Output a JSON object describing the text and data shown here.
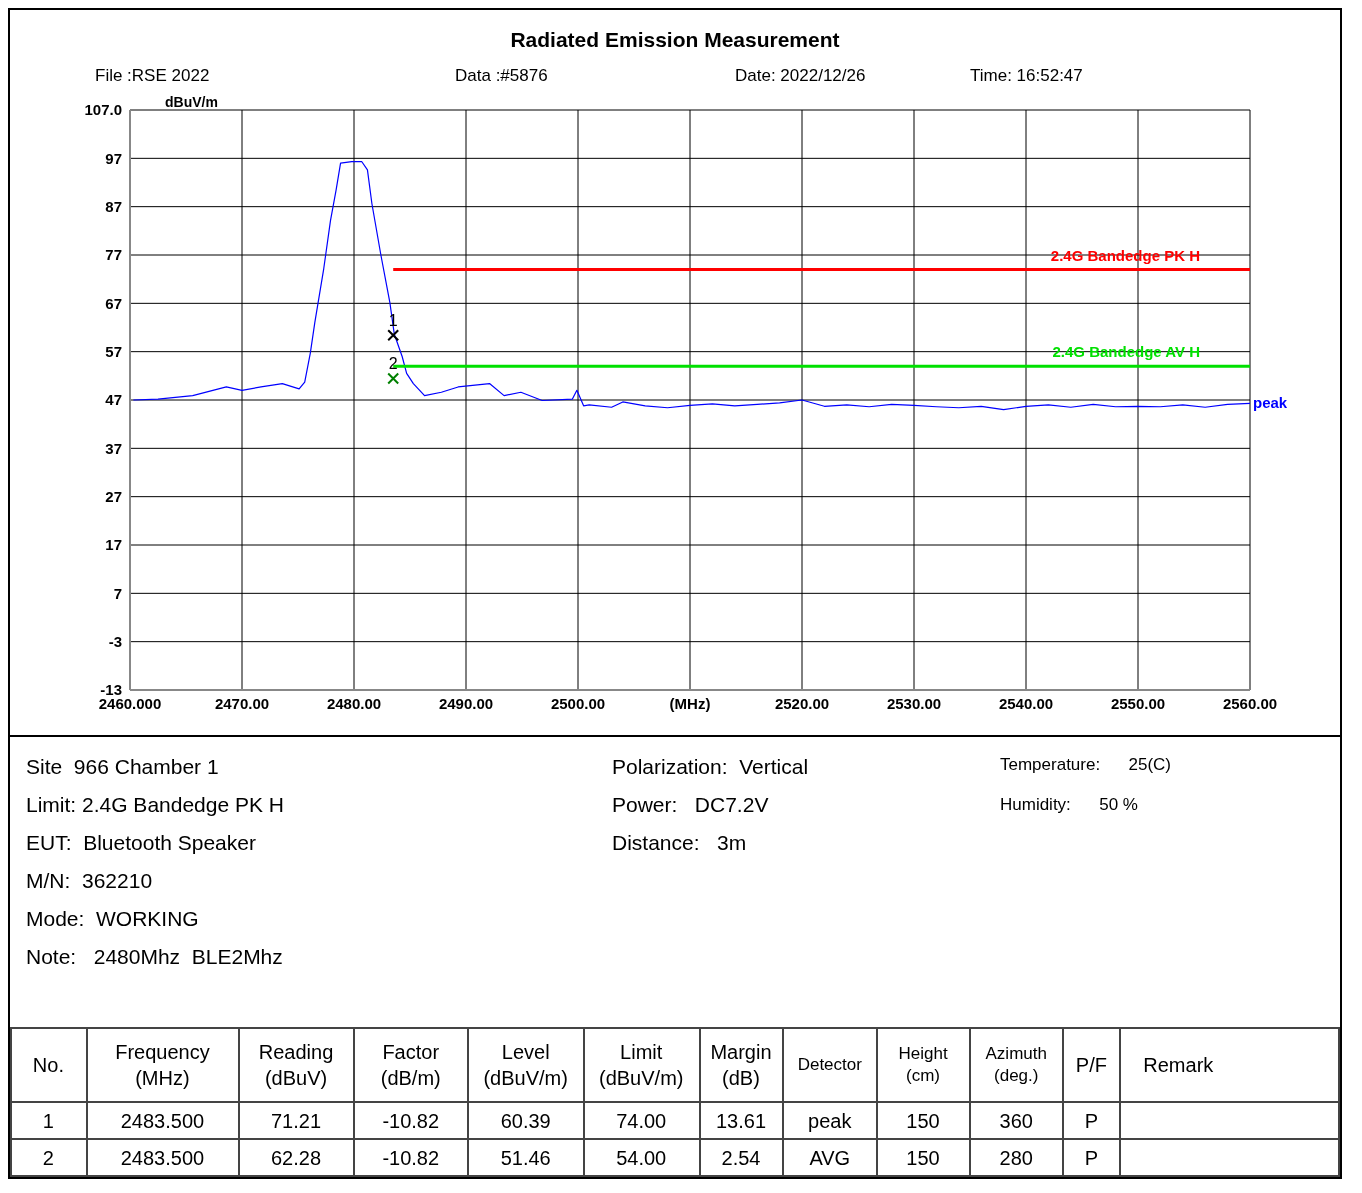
{
  "chart_data": {
    "type": "line",
    "title": "Radiated Emission Measurement",
    "ylabel": "dBuV/m",
    "xlim": [
      2460,
      2560
    ],
    "xticks": [
      {
        "value": 2460,
        "label": "2460.000"
      },
      {
        "value": 2470,
        "label": "2470.00"
      },
      {
        "value": 2480,
        "label": "2480.00"
      },
      {
        "value": 2490,
        "label": "2490.00"
      },
      {
        "value": 2500,
        "label": "2500.00"
      },
      {
        "value": 2510,
        "label": "(MHz)"
      },
      {
        "value": 2520,
        "label": "2520.00"
      },
      {
        "value": 2530,
        "label": "2530.00"
      },
      {
        "value": 2540,
        "label": "2540.00"
      },
      {
        "value": 2550,
        "label": "2550.00"
      },
      {
        "value": 2560,
        "label": "2560.00"
      }
    ],
    "ylim": [
      -13,
      107
    ],
    "yticks": [
      -13,
      -3,
      7,
      17,
      27,
      37,
      47,
      57,
      67,
      77,
      87,
      97,
      {
        "value": 107,
        "label": "107.0"
      }
    ],
    "grid": true,
    "series": [
      {
        "name": "peak",
        "color": "#0000ff",
        "marker": "none",
        "x": [
          2460.3,
          2462.5,
          2465.6,
          2468.6,
          2470,
          2471.7,
          2473.6,
          2475.1,
          2475.6,
          2476.1,
          2476.5,
          2477.3,
          2477.9,
          2478.4,
          2478.8,
          2479.8,
          2480.7,
          2481.2,
          2481.6,
          2482.4,
          2483.2,
          2483.6,
          2484.3,
          2484.7,
          2485.3,
          2486.3,
          2487.8,
          2489.3,
          2492.1,
          2493.4,
          2494.9,
          2496.8,
          2499.5,
          2499.9,
          2500.5,
          2501,
          2503,
          2504,
          2506,
          2508,
          2510,
          2512,
          2514,
          2516,
          2518,
          2520,
          2522,
          2524,
          2526,
          2528,
          2530,
          2532,
          2534,
          2536,
          2538,
          2540,
          2542,
          2544,
          2546,
          2548,
          2550,
          2552,
          2554,
          2556,
          2558,
          2560
        ],
        "values": [
          47.0,
          47.2,
          47.9,
          49.7,
          49.0,
          49.7,
          50.4,
          49.3,
          50.7,
          56.7,
          63.0,
          74.2,
          84.1,
          90.4,
          96.0,
          96.3,
          96.3,
          94.6,
          87.6,
          77.0,
          67.2,
          60.6,
          56.0,
          52.5,
          50.4,
          47.9,
          48.6,
          49.7,
          50.4,
          47.9,
          48.6,
          46.9,
          47.2,
          49.0,
          45.8,
          46.0,
          45.5,
          46.6,
          45.8,
          45.4,
          45.9,
          46.2,
          45.8,
          46.1,
          46.4,
          47.0,
          45.7,
          46.0,
          45.6,
          46.1,
          45.9,
          45.6,
          45.4,
          45.7,
          45.0,
          45.7,
          46.0,
          45.5,
          46.1,
          45.6,
          45.7,
          45.6,
          46.0,
          45.5,
          46.1,
          46.3
        ]
      },
      {
        "name": "2.4G Bandedge PK H",
        "color": "#ff0000",
        "marker": "none",
        "x": [
          2483.5,
          2560
        ],
        "values": [
          74,
          74
        ]
      },
      {
        "name": "2.4G Bandedge AV H",
        "color": "#00e000",
        "marker": "none",
        "x": [
          2483.5,
          2560
        ],
        "values": [
          54,
          54
        ]
      },
      {
        "type": "scatter",
        "marker": "cross",
        "x": [
          2483.5,
          2483.5
        ],
        "values": [
          60.39,
          51.46
        ],
        "colors": [
          "#000000",
          "#008000"
        ]
      }
    ],
    "annotations": [
      "File :RSE 2022",
      "Data :#5876",
      "Date: 2022/12/26",
      "Time: 16:52:47",
      "Site  966 Chamber 1",
      "Limit: 2.4G Bandedge PK H",
      "EUT:  Bluetooth Speaker",
      "M/N:  362210",
      "Mode:  WORKING",
      "Note:   2480Mhz  BLE2Mhz",
      "Polarization:  Vertical",
      "Power:   DC7.2V",
      "Distance:   3m",
      "Temperature:      25(C)",
      "Humidity:      50 %",
      "No.",
      "Frequency\n(MHz)",
      "Reading\n(dBuV)",
      "Factor\n(dB/m)",
      "Level\n(dBuV/m)",
      "Limit\n(dBuV/m)",
      "Margin\n(dB)",
      "Detector",
      "Height\n(cm)",
      "Azimuth\n(deg.)",
      "P/F",
      "Remark",
      "1",
      "2483.500",
      "71.21",
      "-10.82",
      "60.39",
      "74.00",
      "13.61",
      "peak",
      "150",
      "360",
      "P",
      "2",
      "2483.500",
      "62.28",
      "-10.82",
      "51.46",
      "54.00",
      "2.54",
      "AVG",
      "150",
      "280",
      "P",
      {
        "text": "1",
        "x": 2483.5,
        "y": 60.39
      },
      {
        "text": "2",
        "x": 2483.5,
        "y": 51.46
      }
    ]
  }
}
